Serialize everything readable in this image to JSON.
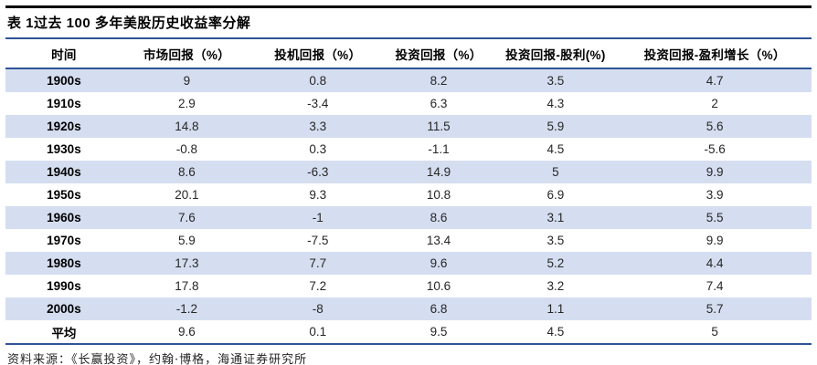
{
  "table": {
    "title": "表 1过去 100 多年美股历史收益率分解",
    "columns": [
      "时间",
      "市场回报（%）",
      "投机回报（%）",
      "投资回报（%）",
      "投资回报-股利(%)",
      "投资回报-盈利增长（%）"
    ],
    "rows": [
      {
        "period": "1900s",
        "values": [
          "9",
          "0.8",
          "8.2",
          "3.5",
          "4.7"
        ]
      },
      {
        "period": "1910s",
        "values": [
          "2.9",
          "-3.4",
          "6.3",
          "4.3",
          "2"
        ]
      },
      {
        "period": "1920s",
        "values": [
          "14.8",
          "3.3",
          "11.5",
          "5.9",
          "5.6"
        ]
      },
      {
        "period": "1930s",
        "values": [
          "-0.8",
          "0.3",
          "-1.1",
          "4.5",
          "-5.6"
        ]
      },
      {
        "period": "1940s",
        "values": [
          "8.6",
          "-6.3",
          "14.9",
          "5",
          "9.9"
        ]
      },
      {
        "period": "1950s",
        "values": [
          "20.1",
          "9.3",
          "10.8",
          "6.9",
          "3.9"
        ]
      },
      {
        "period": "1960s",
        "values": [
          "7.6",
          "-1",
          "8.6",
          "3.1",
          "5.5"
        ]
      },
      {
        "period": "1970s",
        "values": [
          "5.9",
          "-7.5",
          "13.4",
          "3.5",
          "9.9"
        ]
      },
      {
        "period": "1980s",
        "values": [
          "17.3",
          "7.7",
          "9.6",
          "5.2",
          "4.4"
        ]
      },
      {
        "period": "1990s",
        "values": [
          "17.8",
          "7.2",
          "10.6",
          "3.2",
          "7.4"
        ]
      },
      {
        "period": "2000s",
        "values": [
          "-1.2",
          "-8",
          "6.8",
          "1.1",
          "5.7"
        ]
      },
      {
        "period": "平均",
        "values": [
          "9.6",
          "0.1",
          "9.5",
          "4.5",
          "5"
        ]
      }
    ],
    "source": "资料来源：《长赢投资》，约翰·博格，海通证券研究所"
  },
  "colors": {
    "top_rule": "#000000",
    "blue_rule": "#2F5496",
    "row_stripe": "#D5DEF0",
    "header_text": "#000000",
    "body_text": "#262626"
  }
}
